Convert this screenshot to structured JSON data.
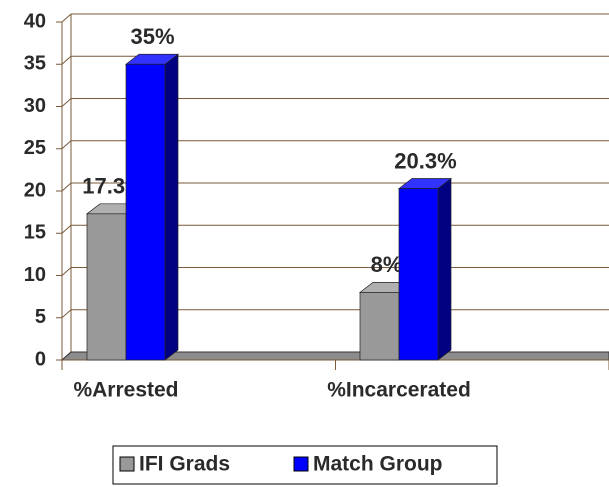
{
  "chart_data": {
    "type": "bar3d",
    "categories": [
      "%Arrested",
      "%Incarcerated"
    ],
    "series": [
      {
        "name": "IFI Grads",
        "color": "#999999",
        "values": [
          17.3,
          8
        ],
        "value_labels": [
          "17.3%",
          "8%"
        ]
      },
      {
        "name": "Match Group",
        "color": "#0000ff",
        "values": [
          35,
          20.3
        ],
        "value_labels": [
          "35%",
          "20.3%"
        ]
      }
    ],
    "ylim": [
      0,
      40
    ],
    "yticks": [
      0,
      5,
      10,
      15,
      20,
      25,
      30,
      35,
      40
    ],
    "grid": true,
    "legend": "bottom"
  }
}
